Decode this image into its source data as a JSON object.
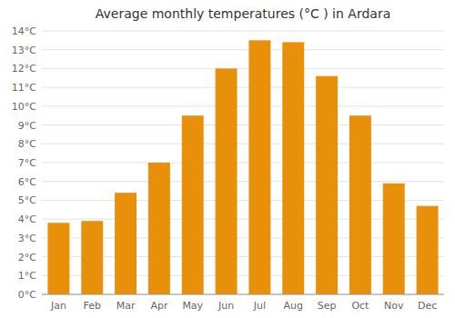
{
  "chart_data": {
    "type": "bar",
    "title": "Average monthly temperatures (°C ) in Ardara",
    "categories": [
      "Jan",
      "Feb",
      "Mar",
      "Apr",
      "May",
      "Jun",
      "Jul",
      "Aug",
      "Sep",
      "Oct",
      "Nov",
      "Dec"
    ],
    "values": [
      3.8,
      3.9,
      5.4,
      7.0,
      9.5,
      12.0,
      13.5,
      13.4,
      11.6,
      9.5,
      5.9,
      4.7
    ],
    "color": "#E8900A",
    "ylim": [
      0,
      14
    ],
    "yticks": [
      {
        "value": 0,
        "label": "0°C"
      },
      {
        "value": 1,
        "label": "1°C"
      },
      {
        "value": 2,
        "label": "2°C"
      },
      {
        "value": 3,
        "label": "3°C"
      },
      {
        "value": 4,
        "label": "4°C"
      },
      {
        "value": 5,
        "label": "5°C"
      },
      {
        "value": 6,
        "label": "6°C"
      },
      {
        "value": 7,
        "label": "7°C"
      },
      {
        "value": 8,
        "label": "8°C"
      },
      {
        "value": 9,
        "label": "9°C"
      },
      {
        "value": 10,
        "label": "10°C"
      },
      {
        "value": 11,
        "label": "11°C"
      },
      {
        "value": 12,
        "label": "12°C"
      },
      {
        "value": 13,
        "label": "13°C"
      },
      {
        "value": 14,
        "label": "14°C"
      }
    ],
    "grid": true
  }
}
